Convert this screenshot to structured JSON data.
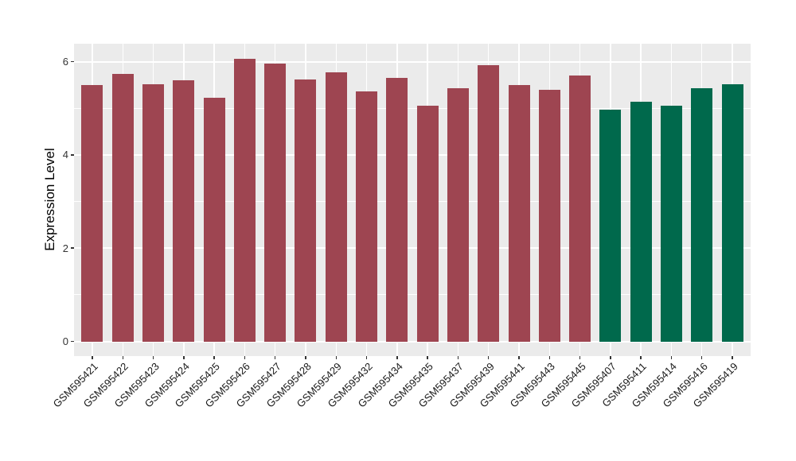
{
  "figure": {
    "background": "#FFFFFF",
    "panel_background": "#EBEBEB",
    "grid_color": "#FFFFFF",
    "axis_text_color": "#333333",
    "axis_title_color": "#000000",
    "tick_mark_color": "#333333"
  },
  "chart_data": {
    "type": "bar",
    "title": "",
    "xlabel": "",
    "ylabel": "Expression Level",
    "ylim": [
      -0.315,
      6.385
    ],
    "y_ticks": [
      0,
      2,
      4,
      6
    ],
    "y_minor_ticks": [
      1,
      3,
      5
    ],
    "x_tick_rotation": 45,
    "grid": true,
    "legend": "none",
    "categories": [
      "GSM595421",
      "GSM595422",
      "GSM595423",
      "GSM595424",
      "GSM595425",
      "GSM595426",
      "GSM595427",
      "GSM595428",
      "GSM595429",
      "GSM595432",
      "GSM595434",
      "GSM595435",
      "GSM595437",
      "GSM595439",
      "GSM595441",
      "GSM595443",
      "GSM595445",
      "GSM595407",
      "GSM595411",
      "GSM595414",
      "GSM595416",
      "GSM595419"
    ],
    "values": [
      5.49,
      5.74,
      5.51,
      5.6,
      5.23,
      6.06,
      5.96,
      5.62,
      5.77,
      5.36,
      5.65,
      5.05,
      5.43,
      5.93,
      5.49,
      5.4,
      5.71,
      4.97,
      5.14,
      5.05,
      5.43,
      5.52
    ],
    "bar_groups": [
      "group1",
      "group1",
      "group1",
      "group1",
      "group1",
      "group1",
      "group1",
      "group1",
      "group1",
      "group1",
      "group1",
      "group1",
      "group1",
      "group1",
      "group1",
      "group1",
      "group1",
      "group2",
      "group2",
      "group2",
      "group2",
      "group2"
    ],
    "palette": {
      "group1": "#9E4551",
      "group2": "#00694C"
    }
  }
}
